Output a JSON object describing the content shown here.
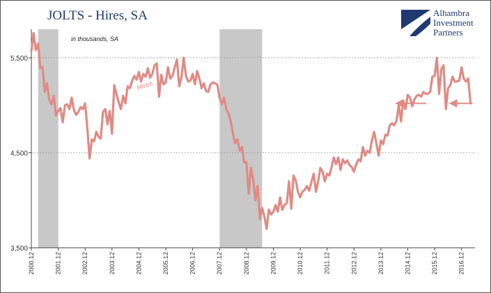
{
  "logo": {
    "lines": [
      "Alhambra",
      "Investment",
      "Partners"
    ],
    "color": "#1f3a6e"
  },
  "chart_data": {
    "type": "line",
    "title": "JOLTS - Hires, SA",
    "subtitle": "in thousands, SA",
    "series_color": "#e08a84",
    "recession_color": "#c8c8c8",
    "yticks": [
      3500,
      4500,
      5500
    ],
    "ytick_labels": [
      "3,500",
      "4,500",
      "5,500"
    ],
    "ylim": [
      3500,
      5800
    ],
    "xlim": [
      2000.917,
      2017.417
    ],
    "xticks": [
      2000.917,
      2001.917,
      2002.917,
      2003.917,
      2004.917,
      2005.917,
      2006.917,
      2007.917,
      2008.917,
      2009.917,
      2010.917,
      2011.917,
      2012.917,
      2013.917,
      2014.917,
      2015.917,
      2016.917
    ],
    "xtick_labels": [
      "2000.12",
      "2001.12",
      "2002.12",
      "2003.12",
      "2004.12",
      "2005.12",
      "2006.12",
      "2007.12",
      "2008.12",
      "2009.12",
      "2010.12",
      "2011.12",
      "2012.12",
      "2013.12",
      "2014.12",
      "2015.12",
      "2016.12"
    ],
    "recessions": [
      [
        2001.17,
        2001.92
      ],
      [
        2007.92,
        2009.5
      ]
    ],
    "series": [
      {
        "name": "Hires",
        "points": [
          [
            2000.917,
            5570
          ],
          [
            2001.0,
            5760
          ],
          [
            2001.083,
            5580
          ],
          [
            2001.167,
            5650
          ],
          [
            2001.25,
            5390
          ],
          [
            2001.333,
            5400
          ],
          [
            2001.417,
            5140
          ],
          [
            2001.5,
            5230
          ],
          [
            2001.583,
            5060
          ],
          [
            2001.667,
            5010
          ],
          [
            2001.75,
            5100
          ],
          [
            2001.833,
            4890
          ],
          [
            2001.917,
            4940
          ],
          [
            2002.0,
            4970
          ],
          [
            2002.083,
            4820
          ],
          [
            2002.167,
            5000
          ],
          [
            2002.25,
            5010
          ],
          [
            2002.333,
            4960
          ],
          [
            2002.417,
            5080
          ],
          [
            2002.5,
            4950
          ],
          [
            2002.583,
            4900
          ],
          [
            2002.667,
            4930
          ],
          [
            2002.75,
            4980
          ],
          [
            2002.833,
            4960
          ],
          [
            2002.917,
            5020
          ],
          [
            2003.0,
            4760
          ],
          [
            2003.083,
            4440
          ],
          [
            2003.167,
            4640
          ],
          [
            2003.25,
            4620
          ],
          [
            2003.333,
            4720
          ],
          [
            2003.417,
            4670
          ],
          [
            2003.5,
            4650
          ],
          [
            2003.583,
            4930
          ],
          [
            2003.667,
            4960
          ],
          [
            2003.75,
            4800
          ],
          [
            2003.833,
            4940
          ],
          [
            2003.917,
            4700
          ],
          [
            2004.0,
            5210
          ],
          [
            2004.083,
            5120
          ],
          [
            2004.167,
            5030
          ],
          [
            2004.25,
            4960
          ],
          [
            2004.333,
            5100
          ],
          [
            2004.417,
            5020
          ],
          [
            2004.5,
            5200
          ],
          [
            2004.583,
            5180
          ],
          [
            2004.667,
            5260
          ],
          [
            2004.75,
            5310
          ],
          [
            2004.833,
            5270
          ],
          [
            2004.917,
            5350
          ],
          [
            2005.0,
            5250
          ],
          [
            2005.083,
            5330
          ],
          [
            2005.167,
            5300
          ],
          [
            2005.25,
            5390
          ],
          [
            2005.333,
            5290
          ],
          [
            2005.417,
            5330
          ],
          [
            2005.5,
            5420
          ],
          [
            2005.583,
            5440
          ],
          [
            2005.667,
            5090
          ],
          [
            2005.75,
            5320
          ],
          [
            2005.833,
            5220
          ],
          [
            2005.917,
            5240
          ],
          [
            2006.0,
            5400
          ],
          [
            2006.083,
            5280
          ],
          [
            2006.167,
            5310
          ],
          [
            2006.25,
            5400
          ],
          [
            2006.333,
            5480
          ],
          [
            2006.417,
            5200
          ],
          [
            2006.5,
            5290
          ],
          [
            2006.583,
            5500
          ],
          [
            2006.667,
            5310
          ],
          [
            2006.75,
            5250
          ],
          [
            2006.833,
            5260
          ],
          [
            2006.917,
            5330
          ],
          [
            2007.0,
            5220
          ],
          [
            2007.083,
            5360
          ],
          [
            2007.167,
            5280
          ],
          [
            2007.25,
            5180
          ],
          [
            2007.333,
            5230
          ],
          [
            2007.417,
            5150
          ],
          [
            2007.5,
            5140
          ],
          [
            2007.583,
            5220
          ],
          [
            2007.667,
            5240
          ],
          [
            2007.75,
            5230
          ],
          [
            2007.833,
            5220
          ],
          [
            2007.917,
            5080
          ],
          [
            2008.0,
            5010
          ],
          [
            2008.083,
            5080
          ],
          [
            2008.167,
            4960
          ],
          [
            2008.25,
            4910
          ],
          [
            2008.333,
            4830
          ],
          [
            2008.417,
            4700
          ],
          [
            2008.5,
            4600
          ],
          [
            2008.583,
            4640
          ],
          [
            2008.667,
            4520
          ],
          [
            2008.75,
            4560
          ],
          [
            2008.833,
            4400
          ],
          [
            2008.917,
            4400
          ],
          [
            2009.0,
            4070
          ],
          [
            2009.083,
            4340
          ],
          [
            2009.167,
            4220
          ],
          [
            2009.25,
            4000
          ],
          [
            2009.333,
            4150
          ],
          [
            2009.417,
            3800
          ],
          [
            2009.5,
            3920
          ],
          [
            2009.583,
            3830
          ],
          [
            2009.667,
            3700
          ],
          [
            2009.75,
            3900
          ],
          [
            2009.833,
            3850
          ],
          [
            2009.917,
            3880
          ],
          [
            2010.0,
            3950
          ],
          [
            2010.083,
            3880
          ],
          [
            2010.167,
            4030
          ],
          [
            2010.25,
            3900
          ],
          [
            2010.333,
            3950
          ],
          [
            2010.417,
            3970
          ],
          [
            2010.5,
            4200
          ],
          [
            2010.583,
            3910
          ],
          [
            2010.667,
            4260
          ],
          [
            2010.75,
            4210
          ],
          [
            2010.833,
            4090
          ],
          [
            2010.917,
            4030
          ],
          [
            2011.0,
            4090
          ],
          [
            2011.083,
            4110
          ],
          [
            2011.167,
            4150
          ],
          [
            2011.25,
            4100
          ],
          [
            2011.333,
            4190
          ],
          [
            2011.417,
            4280
          ],
          [
            2011.5,
            4090
          ],
          [
            2011.583,
            4200
          ],
          [
            2011.667,
            4340
          ],
          [
            2011.75,
            4300
          ],
          [
            2011.833,
            4200
          ],
          [
            2011.917,
            4280
          ],
          [
            2012.0,
            4260
          ],
          [
            2012.083,
            4350
          ],
          [
            2012.167,
            4450
          ],
          [
            2012.25,
            4380
          ],
          [
            2012.333,
            4450
          ],
          [
            2012.417,
            4320
          ],
          [
            2012.5,
            4430
          ],
          [
            2012.583,
            4390
          ],
          [
            2012.667,
            4420
          ],
          [
            2012.75,
            4370
          ],
          [
            2012.833,
            4350
          ],
          [
            2012.917,
            4300
          ],
          [
            2013.0,
            4380
          ],
          [
            2013.083,
            4430
          ],
          [
            2013.167,
            4410
          ],
          [
            2013.25,
            4560
          ],
          [
            2013.333,
            4470
          ],
          [
            2013.417,
            4520
          ],
          [
            2013.5,
            4500
          ],
          [
            2013.583,
            4630
          ],
          [
            2013.667,
            4720
          ],
          [
            2013.75,
            4600
          ],
          [
            2013.833,
            4470
          ],
          [
            2013.917,
            4630
          ],
          [
            2014.0,
            4590
          ],
          [
            2014.083,
            4690
          ],
          [
            2014.167,
            4680
          ],
          [
            2014.25,
            4790
          ],
          [
            2014.333,
            4810
          ],
          [
            2014.417,
            4790
          ],
          [
            2014.5,
            4840
          ],
          [
            2014.583,
            5010
          ],
          [
            2014.667,
            4830
          ],
          [
            2014.75,
            5050
          ],
          [
            2014.833,
            4960
          ],
          [
            2014.917,
            5110
          ],
          [
            2015.0,
            5080
          ],
          [
            2015.083,
            4990
          ],
          [
            2015.167,
            5060
          ],
          [
            2015.25,
            5100
          ],
          [
            2015.333,
            5110
          ],
          [
            2015.417,
            5090
          ],
          [
            2015.5,
            5140
          ],
          [
            2015.583,
            5120
          ],
          [
            2015.667,
            5120
          ],
          [
            2015.75,
            5140
          ],
          [
            2015.833,
            5300
          ],
          [
            2015.917,
            5310
          ],
          [
            2016.0,
            5500
          ],
          [
            2016.083,
            5120
          ],
          [
            2016.167,
            5380
          ],
          [
            2016.25,
            5420
          ],
          [
            2016.333,
            4960
          ],
          [
            2016.417,
            5180
          ],
          [
            2016.5,
            5210
          ],
          [
            2016.583,
            5300
          ],
          [
            2016.667,
            5250
          ],
          [
            2016.75,
            5250
          ],
          [
            2016.833,
            5260
          ],
          [
            2016.917,
            5400
          ],
          [
            2017.0,
            5280
          ],
          [
            2017.083,
            5250
          ],
          [
            2017.167,
            5280
          ],
          [
            2017.25,
            5020
          ]
        ]
      }
    ],
    "reference_arrows": [
      {
        "x_from": 2015.6,
        "x_to": 2014.6,
        "y": 5020
      },
      {
        "x_from": 2017.33,
        "x_to": 2016.6,
        "y": 5020
      }
    ]
  }
}
